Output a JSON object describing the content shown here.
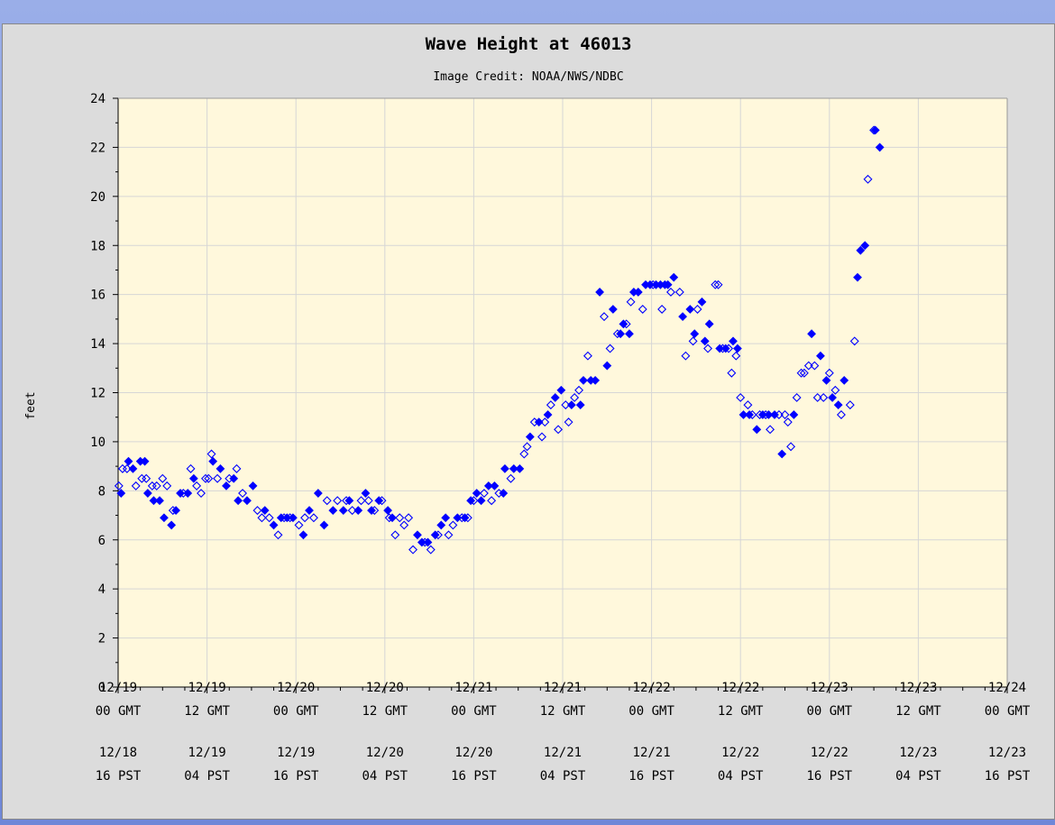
{
  "chart_data": {
    "type": "scatter",
    "title": "Wave Height at 46013",
    "subtitle": "Image Credit: NOAA/NWS/NDBC",
    "ylabel": "feet",
    "ylim": [
      0,
      24
    ],
    "yticks": [
      0,
      2,
      4,
      6,
      8,
      10,
      12,
      14,
      16,
      18,
      20,
      22,
      24
    ],
    "xlim": [
      "12/19 00 GMT",
      "12/24 00 GMT"
    ],
    "x_ticks_gmt": [
      "12/19\n00 GMT",
      "12/19\n12 GMT",
      "12/20\n00 GMT",
      "12/20\n12 GMT",
      "12/21\n00 GMT",
      "12/21\n12 GMT",
      "12/22\n00 GMT",
      "12/22\n12 GMT",
      "12/23\n00 GMT",
      "12/23\n12 GMT",
      "12/24\n00 GMT"
    ],
    "x_ticks_pst": [
      "12/18\n16 PST",
      "12/19\n04 PST",
      "12/19\n16 PST",
      "12/20\n04 PST",
      "12/20\n16 PST",
      "12/21\n04 PST",
      "12/21\n16 PST",
      "12/22\n04 PST",
      "12/22\n16 PST",
      "12/23\n04 PST",
      "12/23\n16 PST"
    ],
    "grid": true,
    "colors": {
      "plot_bg": "#fff8dc",
      "frame_bg": "#dcdcdc",
      "grid": "#d6d6d6",
      "marker": "#0000ff"
    },
    "series": [
      {
        "marker": "filled-diamond",
        "points": [
          [
            0.2,
            7.9
          ],
          [
            0.7,
            9.2
          ],
          [
            1.0,
            8.9
          ],
          [
            1.5,
            9.2
          ],
          [
            1.8,
            9.2
          ],
          [
            2.0,
            7.9
          ],
          [
            2.4,
            7.6
          ],
          [
            2.8,
            7.6
          ],
          [
            3.1,
            6.9
          ],
          [
            3.6,
            6.6
          ],
          [
            3.9,
            7.2
          ],
          [
            4.2,
            7.9
          ],
          [
            4.7,
            7.9
          ],
          [
            5.1,
            8.5
          ],
          [
            6.4,
            9.2
          ],
          [
            6.9,
            8.9
          ],
          [
            7.3,
            8.2
          ],
          [
            7.8,
            8.5
          ],
          [
            8.1,
            7.6
          ],
          [
            8.7,
            7.6
          ],
          [
            9.1,
            8.2
          ],
          [
            9.9,
            7.2
          ],
          [
            10.5,
            6.6
          ],
          [
            11.0,
            6.9
          ],
          [
            11.4,
            6.9
          ],
          [
            11.8,
            6.9
          ],
          [
            12.5,
            6.2
          ],
          [
            12.9,
            7.2
          ],
          [
            13.5,
            7.9
          ],
          [
            13.9,
            6.6
          ],
          [
            14.5,
            7.2
          ],
          [
            15.2,
            7.2
          ],
          [
            15.6,
            7.6
          ],
          [
            16.2,
            7.2
          ],
          [
            16.7,
            7.9
          ],
          [
            17.1,
            7.2
          ],
          [
            17.6,
            7.6
          ],
          [
            18.2,
            7.2
          ],
          [
            18.5,
            6.9
          ],
          [
            20.2,
            6.2
          ],
          [
            20.5,
            5.9
          ],
          [
            20.9,
            5.9
          ],
          [
            21.4,
            6.2
          ],
          [
            21.8,
            6.6
          ],
          [
            22.1,
            6.9
          ],
          [
            22.9,
            6.9
          ],
          [
            23.4,
            6.9
          ],
          [
            23.8,
            7.6
          ],
          [
            24.2,
            7.9
          ],
          [
            24.5,
            7.6
          ],
          [
            25.0,
            8.2
          ],
          [
            25.4,
            8.2
          ],
          [
            26.0,
            7.9
          ],
          [
            26.1,
            8.9
          ],
          [
            26.7,
            8.9
          ],
          [
            27.1,
            8.9
          ],
          [
            27.8,
            10.2
          ],
          [
            28.4,
            10.8
          ],
          [
            29.0,
            11.1
          ],
          [
            29.5,
            11.8
          ],
          [
            29.9,
            12.1
          ],
          [
            30.6,
            11.5
          ],
          [
            31.2,
            11.5
          ],
          [
            31.4,
            12.5
          ],
          [
            31.9,
            12.5
          ],
          [
            32.2,
            12.5
          ],
          [
            32.5,
            16.1
          ],
          [
            33.0,
            13.1
          ],
          [
            33.4,
            15.4
          ],
          [
            33.9,
            14.4
          ],
          [
            34.1,
            14.8
          ],
          [
            34.5,
            14.4
          ],
          [
            34.8,
            16.1
          ],
          [
            35.1,
            16.1
          ],
          [
            35.6,
            16.4
          ],
          [
            35.9,
            16.4
          ],
          [
            36.3,
            16.4
          ],
          [
            36.6,
            16.4
          ],
          [
            36.9,
            16.4
          ],
          [
            37.1,
            16.4
          ],
          [
            37.5,
            16.7
          ],
          [
            38.1,
            15.1
          ],
          [
            38.6,
            15.4
          ],
          [
            38.9,
            14.4
          ],
          [
            39.4,
            15.7
          ],
          [
            39.6,
            14.1
          ],
          [
            39.9,
            14.8
          ],
          [
            40.6,
            13.8
          ],
          [
            41.0,
            13.8
          ],
          [
            41.5,
            14.1
          ],
          [
            41.8,
            13.8
          ],
          [
            42.2,
            11.1
          ],
          [
            42.6,
            11.1
          ],
          [
            43.1,
            10.5
          ],
          [
            43.5,
            11.1
          ],
          [
            43.9,
            11.1
          ],
          [
            44.3,
            11.1
          ],
          [
            44.8,
            9.5
          ],
          [
            45.6,
            11.1
          ],
          [
            46.8,
            14.4
          ],
          [
            47.4,
            13.5
          ],
          [
            47.8,
            12.5
          ],
          [
            48.2,
            11.8
          ],
          [
            48.6,
            11.5
          ],
          [
            49.0,
            12.5
          ],
          [
            49.9,
            16.7
          ],
          [
            50.1,
            17.8
          ],
          [
            50.4,
            18.0
          ],
          [
            51.1,
            22.7
          ],
          [
            51.4,
            22.0
          ]
        ]
      },
      {
        "marker": "open-diamond",
        "points": [
          [
            0.05,
            8.2
          ],
          [
            0.3,
            8.9
          ],
          [
            0.6,
            8.9
          ],
          [
            1.2,
            8.2
          ],
          [
            1.6,
            8.5
          ],
          [
            1.9,
            8.5
          ],
          [
            2.3,
            8.2
          ],
          [
            2.6,
            8.2
          ],
          [
            3.0,
            8.5
          ],
          [
            3.3,
            8.2
          ],
          [
            3.7,
            7.2
          ],
          [
            4.4,
            7.9
          ],
          [
            4.9,
            8.9
          ],
          [
            5.3,
            8.2
          ],
          [
            5.6,
            7.9
          ],
          [
            5.9,
            8.5
          ],
          [
            6.1,
            8.5
          ],
          [
            6.3,
            9.5
          ],
          [
            6.7,
            8.5
          ],
          [
            7.5,
            8.5
          ],
          [
            8.0,
            8.9
          ],
          [
            8.4,
            7.9
          ],
          [
            9.4,
            7.2
          ],
          [
            9.7,
            6.9
          ],
          [
            10.2,
            6.9
          ],
          [
            10.8,
            6.2
          ],
          [
            11.2,
            6.9
          ],
          [
            11.6,
            6.9
          ],
          [
            12.2,
            6.6
          ],
          [
            12.6,
            6.9
          ],
          [
            13.2,
            6.9
          ],
          [
            14.1,
            7.6
          ],
          [
            14.8,
            7.6
          ],
          [
            15.4,
            7.6
          ],
          [
            15.8,
            7.2
          ],
          [
            16.4,
            7.6
          ],
          [
            16.9,
            7.6
          ],
          [
            17.3,
            7.2
          ],
          [
            17.8,
            7.6
          ],
          [
            18.3,
            6.9
          ],
          [
            18.7,
            6.2
          ],
          [
            19.0,
            6.9
          ],
          [
            19.3,
            6.6
          ],
          [
            19.6,
            6.9
          ],
          [
            19.9,
            5.6
          ],
          [
            20.7,
            5.9
          ],
          [
            21.1,
            5.6
          ],
          [
            21.6,
            6.2
          ],
          [
            22.3,
            6.2
          ],
          [
            22.6,
            6.6
          ],
          [
            23.2,
            6.9
          ],
          [
            23.6,
            6.9
          ],
          [
            24.0,
            7.6
          ],
          [
            24.7,
            7.9
          ],
          [
            25.2,
            7.6
          ],
          [
            25.7,
            7.9
          ],
          [
            26.5,
            8.5
          ],
          [
            27.4,
            9.5
          ],
          [
            27.6,
            9.8
          ],
          [
            28.1,
            10.8
          ],
          [
            28.6,
            10.2
          ],
          [
            28.8,
            10.8
          ],
          [
            29.2,
            11.5
          ],
          [
            29.7,
            10.5
          ],
          [
            30.2,
            11.5
          ],
          [
            30.4,
            10.8
          ],
          [
            30.8,
            11.8
          ],
          [
            31.1,
            12.1
          ],
          [
            31.7,
            13.5
          ],
          [
            32.8,
            15.1
          ],
          [
            33.2,
            13.8
          ],
          [
            33.7,
            14.4
          ],
          [
            34.3,
            14.8
          ],
          [
            34.6,
            15.7
          ],
          [
            35.4,
            15.4
          ],
          [
            36.1,
            16.4
          ],
          [
            36.7,
            15.4
          ],
          [
            37.3,
            16.1
          ],
          [
            37.9,
            16.1
          ],
          [
            38.3,
            13.5
          ],
          [
            38.8,
            14.1
          ],
          [
            39.1,
            15.4
          ],
          [
            39.8,
            13.8
          ],
          [
            40.3,
            16.4
          ],
          [
            40.5,
            16.4
          ],
          [
            40.8,
            13.8
          ],
          [
            41.2,
            13.8
          ],
          [
            41.4,
            12.8
          ],
          [
            41.7,
            13.5
          ],
          [
            42.0,
            11.8
          ],
          [
            42.5,
            11.5
          ],
          [
            42.8,
            11.1
          ],
          [
            43.3,
            11.1
          ],
          [
            43.7,
            11.1
          ],
          [
            44.0,
            10.5
          ],
          [
            44.6,
            11.1
          ],
          [
            45.0,
            11.1
          ],
          [
            45.2,
            10.8
          ],
          [
            45.4,
            9.8
          ],
          [
            45.8,
            11.8
          ],
          [
            46.1,
            12.8
          ],
          [
            46.3,
            12.8
          ],
          [
            46.6,
            13.1
          ],
          [
            47.0,
            13.1
          ],
          [
            47.2,
            11.8
          ],
          [
            47.6,
            11.8
          ],
          [
            48.0,
            12.8
          ],
          [
            48.4,
            12.1
          ],
          [
            48.8,
            11.1
          ],
          [
            49.4,
            11.5
          ],
          [
            49.7,
            14.1
          ],
          [
            50.6,
            20.7
          ],
          [
            51.0,
            22.7
          ]
        ]
      }
    ]
  }
}
